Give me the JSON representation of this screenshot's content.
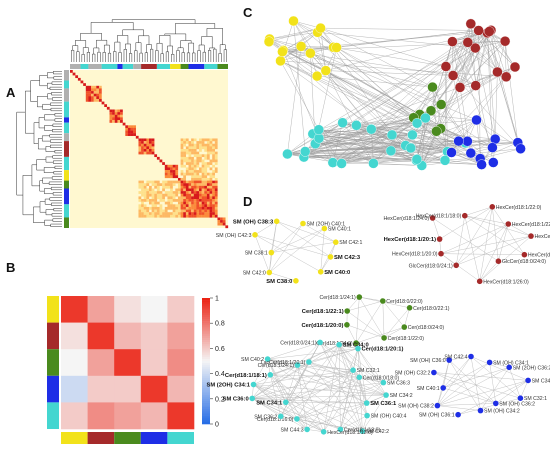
{
  "panels": {
    "a": "A",
    "b": "B",
    "c": "C",
    "d": "D"
  },
  "colors": {
    "yellow": "#f2e21a",
    "red": "#a52a2a",
    "green": "#4a8a1e",
    "blue": "#1e2ee6",
    "cyan": "#44d6d0",
    "edge": "#9a9a9a"
  },
  "heatmap_b": {
    "groups": [
      "yellow",
      "red",
      "green",
      "blue",
      "cyan"
    ],
    "colorbar_ticks": [
      "1",
      "0.8",
      "0.6",
      "0.4",
      "0.2",
      "0"
    ],
    "values": [
      [
        0.95,
        0.7,
        0.55,
        0.5,
        0.6
      ],
      [
        0.55,
        0.95,
        0.65,
        0.6,
        0.7
      ],
      [
        0.5,
        0.7,
        0.95,
        0.6,
        0.75
      ],
      [
        0.4,
        0.6,
        0.6,
        0.95,
        0.65
      ],
      [
        0.6,
        0.75,
        0.7,
        0.65,
        0.95
      ]
    ]
  },
  "network_d": {
    "yellow": {
      "labels": [
        "SM C42:3",
        "SM C40:0",
        "SM C38:0",
        "SM C42:0",
        "SM C38:1",
        "SM (OH) C42:3",
        "SM (OH) C38:3",
        "SM (2OH) C40:1",
        "SM C40:1",
        "SM C42:1"
      ],
      "bold": [
        "SM C42:3",
        "SM C40:0",
        "SM C38:0",
        "SM (OH) C38:3"
      ]
    },
    "red": {
      "labels": [
        "HexCer(d18:1/24:1)",
        "GlcCer(d18:0/24:0)",
        "HexCer(d18:1/26:0)",
        "GlcCer(d18:0/24:1)",
        "HexCer(d18:1/20:0)",
        "HexCer(d18:1/20:1)",
        "HexCer(d18:1/24:0)",
        "HexCer(d18:1/18:0)",
        "HexCer(d18:1/22:0)",
        "HexCer(d18:1/22:1)",
        "HexCer(d18:1/16:0)"
      ],
      "bold": [
        "HexCer(d18:1/20:1)"
      ]
    },
    "green": {
      "labels": [
        "Cer(d18:0/24:0)",
        "Cer(d18:1/22:0)",
        "Cer(d18:1/24:0)",
        "Cer(d18:1/20:0)",
        "Cer(d18:1/22:1)",
        "Cer(d18:1/24:1)",
        "Cer(d18:0/22:0)",
        "Cer(d18:0/22:1)"
      ],
      "bold": [
        "Cer(d18:1/20:0)",
        "Cer(d18:1/22:1)"
      ]
    },
    "cyan": {
      "labels": [
        "SM C36:1",
        "SM (OH) C40:4",
        "SM C42:2",
        "Cer(d18:1/18:0)",
        "HexCer(d18:1/12:0)",
        "SM C44:3",
        "Cer(d18:1/16:0)",
        "SM C36:2",
        "SM C34:1",
        "SM C36:0",
        "SM (2OH) C34:1",
        "Cer(d18:1/18:1)",
        "SM C40:2",
        "Cer(d18:1/24:1)",
        "LacCer(d18:1/20:1)",
        "Cer(d18:0/24:1)",
        "SM C34:0",
        "Cer(d18:1/20:1)",
        "SM C32:1",
        "Cer(d18:0/18:0)",
        "SM C36:3",
        "SM C34:2"
      ],
      "bold": [
        "SM C36:1",
        "SM C34:1",
        "SM C36:0",
        "SM (2OH) C34:1",
        "Cer(d18:1/18:1)",
        "SM C34:0",
        "Cer(d18:1/20:1)"
      ]
    },
    "blue": {
      "labels": [
        "SM C32:1",
        "SM (OH) C36:2",
        "SM (OH) C34:2",
        "SM (OH) C36:1",
        "SM (OH) C38:2",
        "SM C40:1",
        "SM (OH) C32:2",
        "SM (OH) C36:0",
        "SM C42:4",
        "SM (OH) C34:1",
        "SM (2OH) C36:2",
        "SM C34:2"
      ],
      "bold": []
    }
  }
}
